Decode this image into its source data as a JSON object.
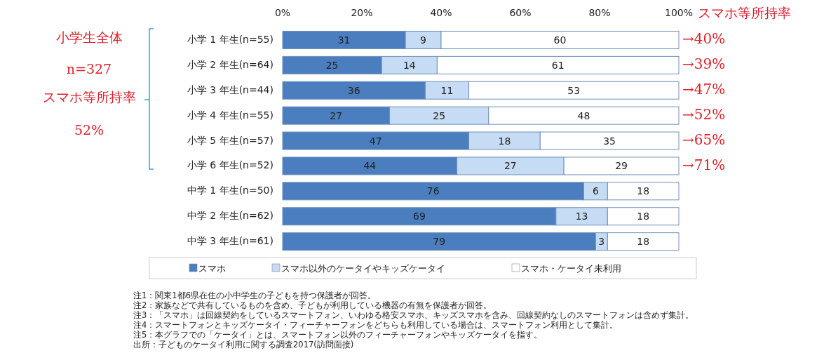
{
  "chart_data": {
    "type": "bar",
    "orientation": "horizontal",
    "stacked": true,
    "categories": [
      "小学 1 年生(n=55)",
      "小学 2 年生(n=64)",
      "小学 3 年生(n=44)",
      "小学 4 年生(n=55)",
      "小学 5 年生(n=57)",
      "小学 6 年生(n=52)",
      "中学 1 年生(n=50)",
      "中学 2 年生(n=62)",
      "中学 3 年生(n=61)"
    ],
    "series": [
      {
        "name": "スマホ",
        "color": "#4a7ebf",
        "values": [
          31,
          25,
          36,
          27,
          47,
          44,
          76,
          69,
          79
        ]
      },
      {
        "name": "スマホ以外のケータイやキッズケータイ",
        "color": "#c6dcf4",
        "values": [
          9,
          14,
          11,
          25,
          18,
          27,
          6,
          13,
          3
        ]
      },
      {
        "name": "スマホ・ケータイ未利用",
        "color": "#ffffff",
        "values": [
          60,
          61,
          53,
          48,
          35,
          29,
          18,
          18,
          18
        ]
      }
    ],
    "xlim": [
      0,
      100
    ],
    "xticks": [
      {
        "value": 0,
        "label": "0%"
      },
      {
        "value": 20,
        "label": "20%"
      },
      {
        "value": 40,
        "label": "40%"
      },
      {
        "value": 60,
        "label": "60%"
      },
      {
        "value": 80,
        "label": "80%"
      },
      {
        "value": 100,
        "label": "100%"
      }
    ],
    "data_labels": true,
    "grid": false,
    "legend": "bottom",
    "annotations": [
      "スマホ等所持率",
      "小学生全体",
      "n=327",
      "スマホ等所持率",
      "52%",
      "→40%",
      "→39%",
      "→47%",
      "→52%",
      "→65%",
      "→71%",
      "注1：関東1都6県在住の小中学生の子どもを持つ保護者が回答。",
      "注2：家族などで共有しているものを含め、子どもが利用している機器の有無を保護者が回答。",
      "注3：「スマホ」は回線契約をしているスマートフォン、いわゆる格安スマホ、キッズスマホを含み、回線契約なしのスマートフォンは含めず集計。",
      "注4：スマートフォンとキッズケータイ・フィーチャーフォンをどちらも利用している場合は、スマートフォン利用として集計。",
      "注5：本グラフでの「ケータイ」とは、スマートフォン以外のフィーチャーフォンやキッズケータイを指す。",
      "出所：子どものケータイ利用に関する調査2017(訪問面接)"
    ]
  }
}
